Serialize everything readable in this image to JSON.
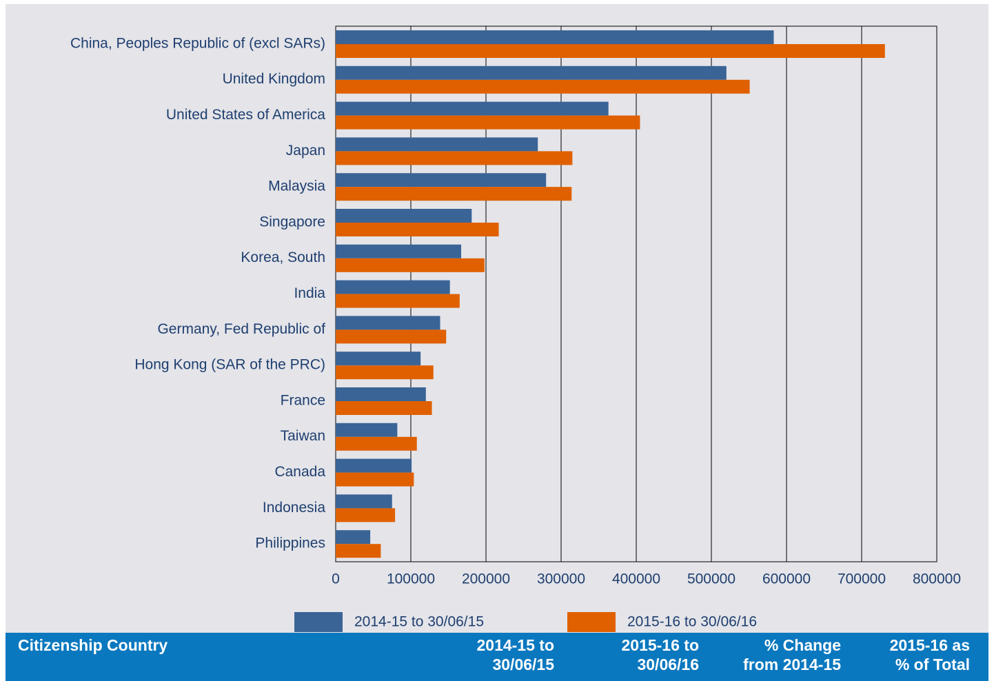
{
  "chart_data": {
    "type": "hbar",
    "categories": [
      "China, Peoples Republic of (excl SARs)",
      "United Kingdom",
      "United States of America",
      "Japan",
      "Malaysia",
      "Singapore",
      "Korea, South",
      "India",
      "Germany, Fed Republic of",
      "Hong Kong (SAR of the PRC)",
      "France",
      "Taiwan",
      "Canada",
      "Indonesia",
      "Philippines"
    ],
    "series": [
      {
        "name": "2014-15 to 30/06/15",
        "color": "#3a6496",
        "values": [
          583000,
          520000,
          363000,
          269000,
          280000,
          181000,
          167000,
          152000,
          139000,
          113000,
          120000,
          82000,
          101000,
          75000,
          46000
        ]
      },
      {
        "name": "2015-16 to 30/06/16",
        "color": "#e06000",
        "values": [
          731000,
          551000,
          405000,
          315000,
          314000,
          217000,
          198000,
          165000,
          147000,
          130000,
          128000,
          108000,
          104000,
          79000,
          60000
        ]
      }
    ],
    "xlim": [
      0,
      800000
    ],
    "xticks": [
      0,
      100000,
      200000,
      300000,
      400000,
      500000,
      600000,
      700000,
      800000
    ],
    "grid": true,
    "legend": "bottom"
  },
  "table": {
    "headers": [
      [
        "Citizenship Country"
      ],
      [
        "2014-15 to",
        "30/06/15"
      ],
      [
        "2015-16 to",
        "30/06/16"
      ],
      [
        "% Change",
        "from 2014-15"
      ],
      [
        "2015-16 as",
        "% of Total"
      ]
    ]
  }
}
